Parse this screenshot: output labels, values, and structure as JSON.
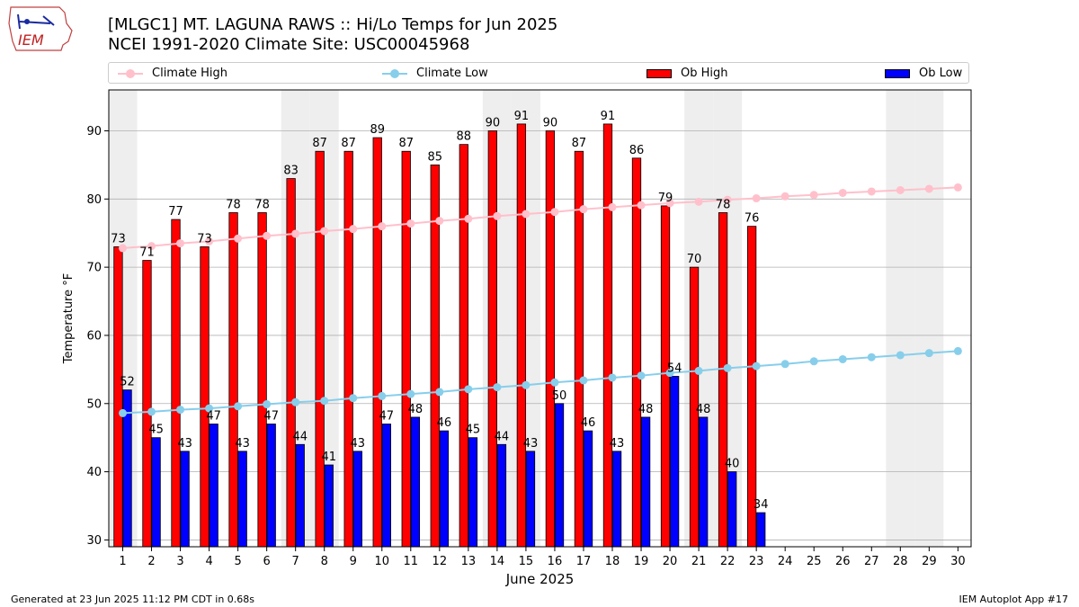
{
  "header": {
    "title_line1": "[MLGC1] MT. LAGUNA RAWS :: Hi/Lo Temps for Jun 2025",
    "title_line2": "NCEI 1991-2020 Climate Site: USC00045968",
    "logo_text": "IEM"
  },
  "legend": {
    "climate_high": "Climate High",
    "climate_low": "Climate Low",
    "ob_high": "Ob High",
    "ob_low": "Ob Low"
  },
  "footer": {
    "left": "Generated at 23 Jun 2025 11:12 PM CDT in 0.68s",
    "right": "IEM Autoplot App #17"
  },
  "colors": {
    "ob_high": "#ff0000",
    "ob_low": "#0000ff",
    "climate_high": "#ffc0cb",
    "climate_low": "#87ceeb",
    "weekend_shade": "#eeeeee",
    "grid": "#b0b0b0"
  },
  "chart_data": {
    "type": "bar",
    "xlabel": "June 2025",
    "ylabel": "Temperature °F",
    "ylim": [
      29,
      96
    ],
    "yticks": [
      30,
      40,
      50,
      60,
      70,
      80,
      90
    ],
    "xticks": [
      1,
      2,
      3,
      4,
      5,
      6,
      7,
      8,
      9,
      10,
      11,
      12,
      13,
      14,
      15,
      16,
      17,
      18,
      19,
      20,
      21,
      22,
      23,
      24,
      25,
      26,
      27,
      28,
      29,
      30
    ],
    "grid": "horizontal",
    "legend_position": "top",
    "weekend_days": [
      1,
      7,
      8,
      14,
      15,
      21,
      22,
      28,
      29
    ],
    "series": [
      {
        "name": "Ob High",
        "type": "bar",
        "days": [
          1,
          2,
          3,
          4,
          5,
          6,
          7,
          8,
          9,
          10,
          11,
          12,
          13,
          14,
          15,
          16,
          17,
          18,
          19,
          20,
          21,
          22,
          23
        ],
        "values": [
          73,
          71,
          77,
          73,
          78,
          78,
          83,
          87,
          87,
          89,
          87,
          85,
          88,
          90,
          91,
          90,
          87,
          91,
          86,
          79,
          70,
          78,
          76
        ]
      },
      {
        "name": "Ob Low",
        "type": "bar",
        "days": [
          1,
          2,
          3,
          4,
          5,
          6,
          7,
          8,
          9,
          10,
          11,
          12,
          13,
          14,
          15,
          16,
          17,
          18,
          19,
          20,
          21,
          22,
          23
        ],
        "values": [
          52,
          45,
          43,
          47,
          43,
          47,
          44,
          41,
          43,
          47,
          48,
          46,
          45,
          44,
          43,
          50,
          46,
          43,
          48,
          54,
          48,
          40,
          34
        ]
      },
      {
        "name": "Climate High",
        "type": "line",
        "days": [
          1,
          2,
          3,
          4,
          5,
          6,
          7,
          8,
          9,
          10,
          11,
          12,
          13,
          14,
          15,
          16,
          17,
          18,
          19,
          20,
          21,
          22,
          23,
          24,
          25,
          26,
          27,
          28,
          29,
          30
        ],
        "values": [
          72.8,
          73.1,
          73.5,
          73.8,
          74.2,
          74.6,
          74.9,
          75.3,
          75.6,
          76.0,
          76.4,
          76.8,
          77.1,
          77.5,
          77.8,
          78.1,
          78.5,
          78.8,
          79.1,
          79.4,
          79.6,
          79.9,
          80.1,
          80.4,
          80.6,
          80.9,
          81.1,
          81.3,
          81.5,
          81.7
        ]
      },
      {
        "name": "Climate Low",
        "type": "line",
        "days": [
          1,
          2,
          3,
          4,
          5,
          6,
          7,
          8,
          9,
          10,
          11,
          12,
          13,
          14,
          15,
          16,
          17,
          18,
          19,
          20,
          21,
          22,
          23,
          24,
          25,
          26,
          27,
          28,
          29,
          30
        ],
        "values": [
          48.6,
          48.8,
          49.1,
          49.3,
          49.6,
          49.9,
          50.2,
          50.4,
          50.8,
          51.1,
          51.4,
          51.7,
          52.1,
          52.4,
          52.7,
          53.1,
          53.4,
          53.8,
          54.1,
          54.5,
          54.8,
          55.2,
          55.5,
          55.8,
          56.2,
          56.5,
          56.8,
          57.1,
          57.4,
          57.7
        ]
      }
    ]
  }
}
